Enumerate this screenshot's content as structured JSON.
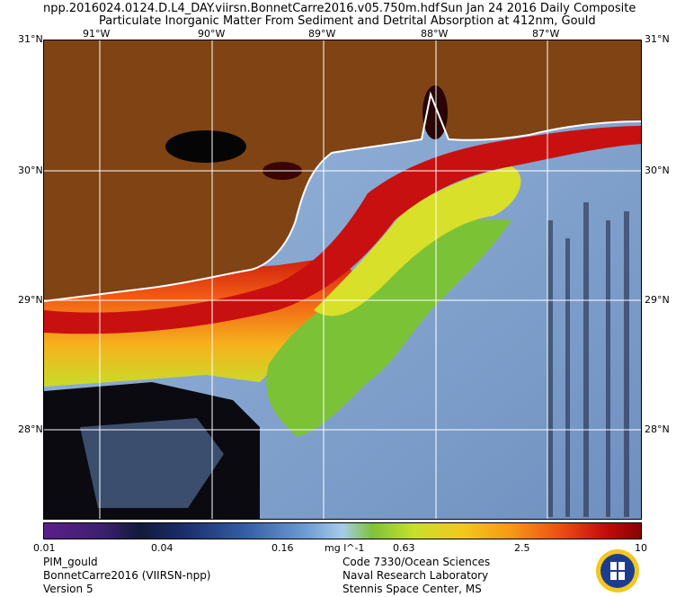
{
  "header": {
    "filename": "npp.2016024.0124.D.L4_DAY.viirsn.BonnetCarre2016.v05.750m.hdf",
    "date": "Sun Jan 24 2016 Daily Composite",
    "title": "Particulate Inorganic Matter From Sediment and Detrital Absorption at 412nm, Gould"
  },
  "longitudes": [
    "91°W",
    "90°W",
    "89°W",
    "88°W",
    "87°W"
  ],
  "latitudes": [
    "31°N",
    "30°N",
    "29°N",
    "28°N"
  ],
  "colorbar": {
    "min_label": "0.01",
    "labels": [
      "0.04",
      "0.16",
      "0.63",
      "2.5"
    ],
    "max_label": "10",
    "units": "mg l^-1",
    "scale": "log"
  },
  "footer": {
    "product": "PIM_gould",
    "region": "BonnetCarre2016 (VIIRSN-npp)",
    "version": "Version 5",
    "org1": "Code 7330/Ocean Sciences",
    "org2": "Naval Research Laboratory",
    "org3": "Stennis Space Center, MS"
  },
  "colors": {
    "land": "#7f4314",
    "clouds": "#000000",
    "coastline": "#ffffff",
    "offshore": "#8fb0d8",
    "plume_high": "#a00404"
  }
}
